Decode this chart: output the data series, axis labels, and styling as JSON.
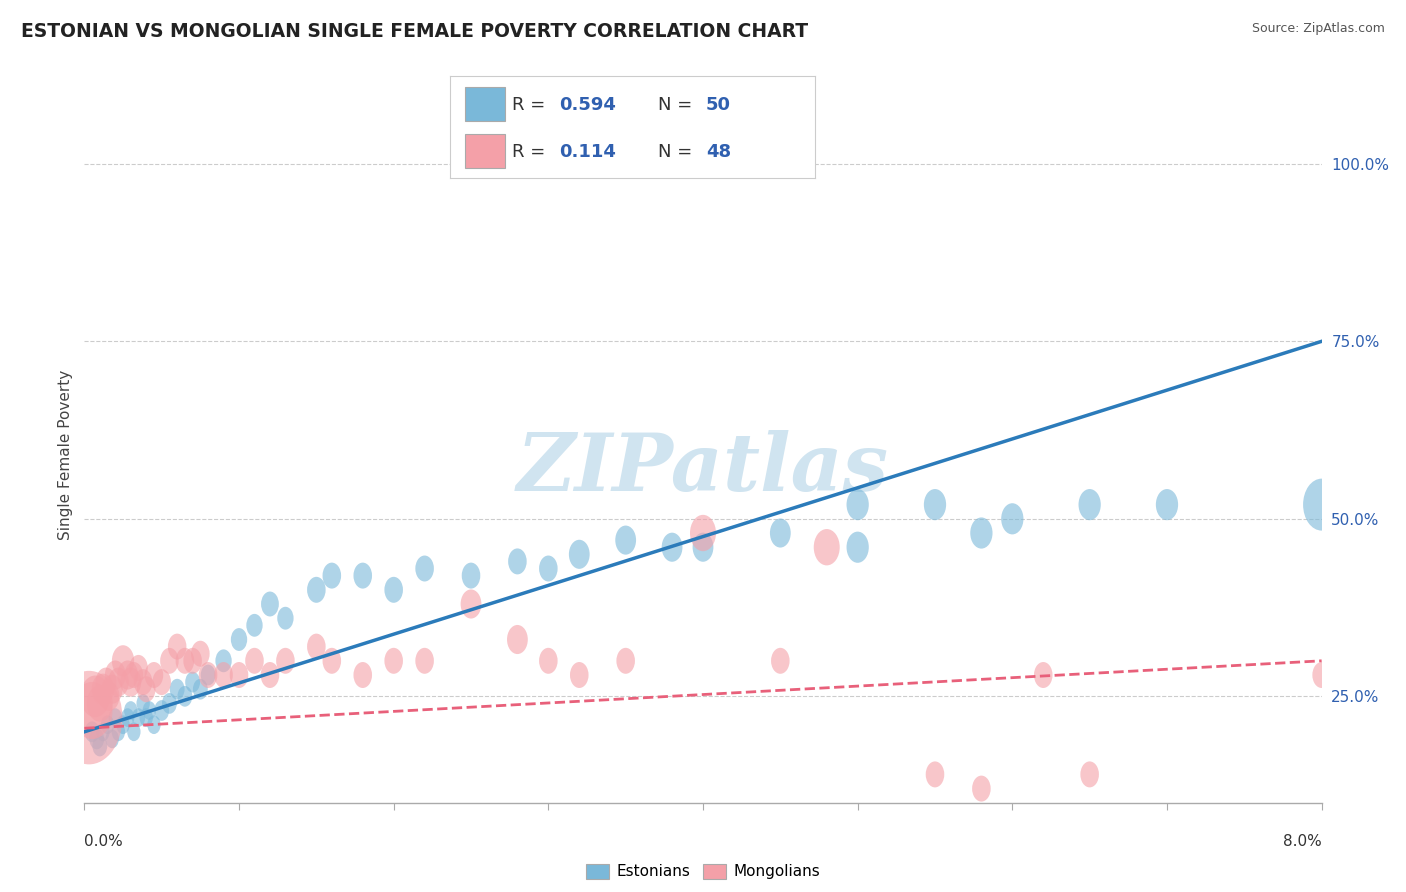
{
  "title": "ESTONIAN VS MONGOLIAN SINGLE FEMALE POVERTY CORRELATION CHART",
  "source": "Source: ZipAtlas.com",
  "ylabel": "Single Female Poverty",
  "xmin": 0.0,
  "xmax": 8.0,
  "ymin": 10.0,
  "ymax": 108.0,
  "yticks": [
    25.0,
    50.0,
    75.0,
    100.0
  ],
  "estonian_color": "#7ab8d9",
  "mongolian_color": "#f4a0a8",
  "line_estonian_color": "#2b7bba",
  "line_mongolian_color": "#e8607a",
  "watermark_color": "#d0e4f0",
  "background_color": "#ffffff",
  "estonian_x": [
    0.05,
    0.08,
    0.1,
    0.12,
    0.15,
    0.18,
    0.2,
    0.22,
    0.25,
    0.28,
    0.3,
    0.32,
    0.35,
    0.38,
    0.4,
    0.42,
    0.45,
    0.5,
    0.55,
    0.6,
    0.65,
    0.7,
    0.75,
    0.8,
    0.9,
    1.0,
    1.1,
    1.2,
    1.3,
    1.5,
    1.6,
    1.8,
    2.0,
    2.2,
    2.5,
    2.8,
    3.0,
    3.2,
    3.5,
    3.8,
    4.0,
    4.5,
    5.0,
    5.0,
    5.5,
    5.8,
    6.0,
    6.5,
    7.0,
    8.0
  ],
  "estonian_y": [
    20,
    19,
    18,
    20,
    21,
    19,
    22,
    20,
    21,
    22,
    23,
    20,
    22,
    24,
    22,
    23,
    21,
    23,
    24,
    26,
    25,
    27,
    26,
    28,
    30,
    33,
    35,
    38,
    36,
    40,
    42,
    42,
    40,
    43,
    42,
    44,
    43,
    45,
    47,
    46,
    46,
    48,
    52,
    46,
    52,
    48,
    50,
    52,
    52,
    52
  ],
  "estonian_sizes": [
    20,
    20,
    20,
    18,
    18,
    18,
    18,
    18,
    18,
    18,
    18,
    18,
    18,
    18,
    18,
    18,
    18,
    20,
    20,
    20,
    20,
    20,
    20,
    20,
    22,
    22,
    22,
    24,
    22,
    25,
    25,
    25,
    25,
    25,
    25,
    25,
    25,
    28,
    28,
    28,
    28,
    28,
    30,
    30,
    30,
    30,
    30,
    30,
    30,
    50
  ],
  "mongolian_x": [
    0.03,
    0.05,
    0.07,
    0.1,
    0.12,
    0.14,
    0.16,
    0.18,
    0.2,
    0.22,
    0.25,
    0.28,
    0.3,
    0.32,
    0.35,
    0.38,
    0.4,
    0.45,
    0.5,
    0.55,
    0.6,
    0.65,
    0.7,
    0.75,
    0.8,
    0.9,
    1.0,
    1.1,
    1.2,
    1.3,
    1.5,
    1.6,
    1.8,
    2.0,
    2.2,
    2.5,
    2.8,
    3.0,
    3.2,
    3.5,
    4.0,
    4.5,
    4.8,
    5.5,
    5.8,
    6.2,
    6.5,
    8.0
  ],
  "mongolian_y": [
    22,
    23,
    25,
    24,
    26,
    27,
    25,
    26,
    28,
    27,
    30,
    28,
    27,
    28,
    29,
    27,
    26,
    28,
    27,
    30,
    32,
    30,
    30,
    31,
    28,
    28,
    28,
    30,
    28,
    30,
    32,
    30,
    28,
    30,
    30,
    38,
    33,
    30,
    28,
    30,
    48,
    30,
    46,
    14,
    12,
    28,
    14,
    28
  ],
  "mongolian_sizes": [
    90,
    55,
    40,
    35,
    30,
    28,
    28,
    28,
    28,
    28,
    30,
    28,
    28,
    25,
    25,
    25,
    25,
    25,
    25,
    25,
    25,
    25,
    25,
    25,
    25,
    25,
    25,
    25,
    25,
    25,
    25,
    25,
    25,
    25,
    25,
    28,
    28,
    25,
    25,
    25,
    35,
    25,
    35,
    25,
    25,
    25,
    25,
    25
  ],
  "estonian_line_y0": 20.0,
  "estonian_line_y8": 75.0,
  "mongolian_line_y0": 20.5,
  "mongolian_line_y8": 30.0
}
